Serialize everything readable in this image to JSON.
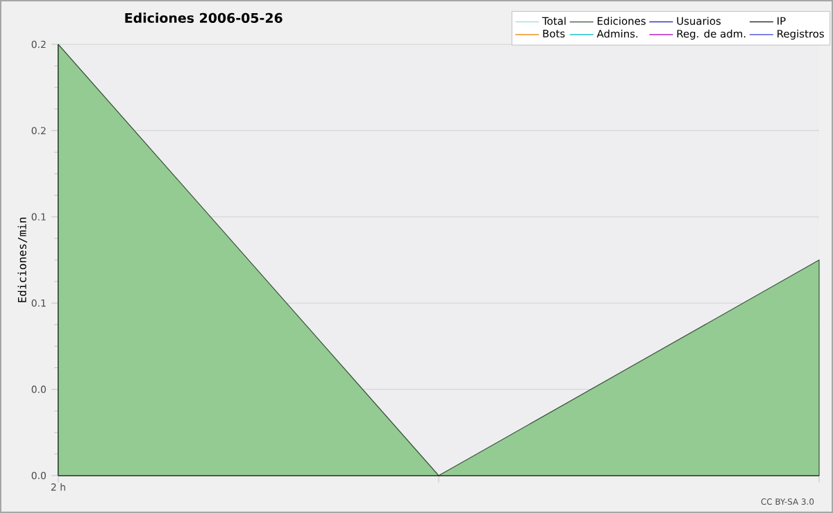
{
  "chart_data": {
    "type": "area",
    "title": "Ediciones  2006-05-26",
    "ylabel": "Ediciones/min",
    "categories": [
      "2 h",
      null,
      null
    ],
    "series": [
      {
        "name": "Total",
        "color": "#a8e0e0",
        "values": [
          null,
          null,
          null
        ]
      },
      {
        "name": "Ediciones",
        "color": "#93cb93",
        "values": [
          0.2,
          0,
          0.1
        ]
      },
      {
        "name": "Usuarios",
        "color": "#3030d0",
        "values": [
          null,
          null,
          null
        ]
      },
      {
        "name": "IP",
        "color": "#303030",
        "values": [
          null,
          null,
          null
        ]
      },
      {
        "name": "Bots",
        "color": "#f0a040",
        "values": [
          null,
          null,
          null
        ]
      },
      {
        "name": "Admins.",
        "color": "#40c8d8",
        "values": [
          null,
          null,
          null
        ]
      },
      {
        "name": "Reg. de adm.",
        "color": "#c040d0",
        "values": [
          null,
          null,
          null
        ]
      },
      {
        "name": "Registros",
        "color": "#7070e0",
        "values": [
          null,
          null,
          null
        ]
      }
    ],
    "ylim": [
      0,
      0.2
    ],
    "yticks": [
      {
        "value": 0,
        "label": "0.0"
      },
      {
        "value": 0.04,
        "label": "0.0"
      },
      {
        "value": 0.08,
        "label": "0.1"
      },
      {
        "value": 0.12,
        "label": "0.1"
      },
      {
        "value": 0.16,
        "label": "0.2"
      },
      {
        "value": 0.2,
        "label": "0.2"
      }
    ],
    "grid": "y",
    "legend": "top right",
    "annotations": [
      "CC BY-SA 3.0"
    ]
  }
}
